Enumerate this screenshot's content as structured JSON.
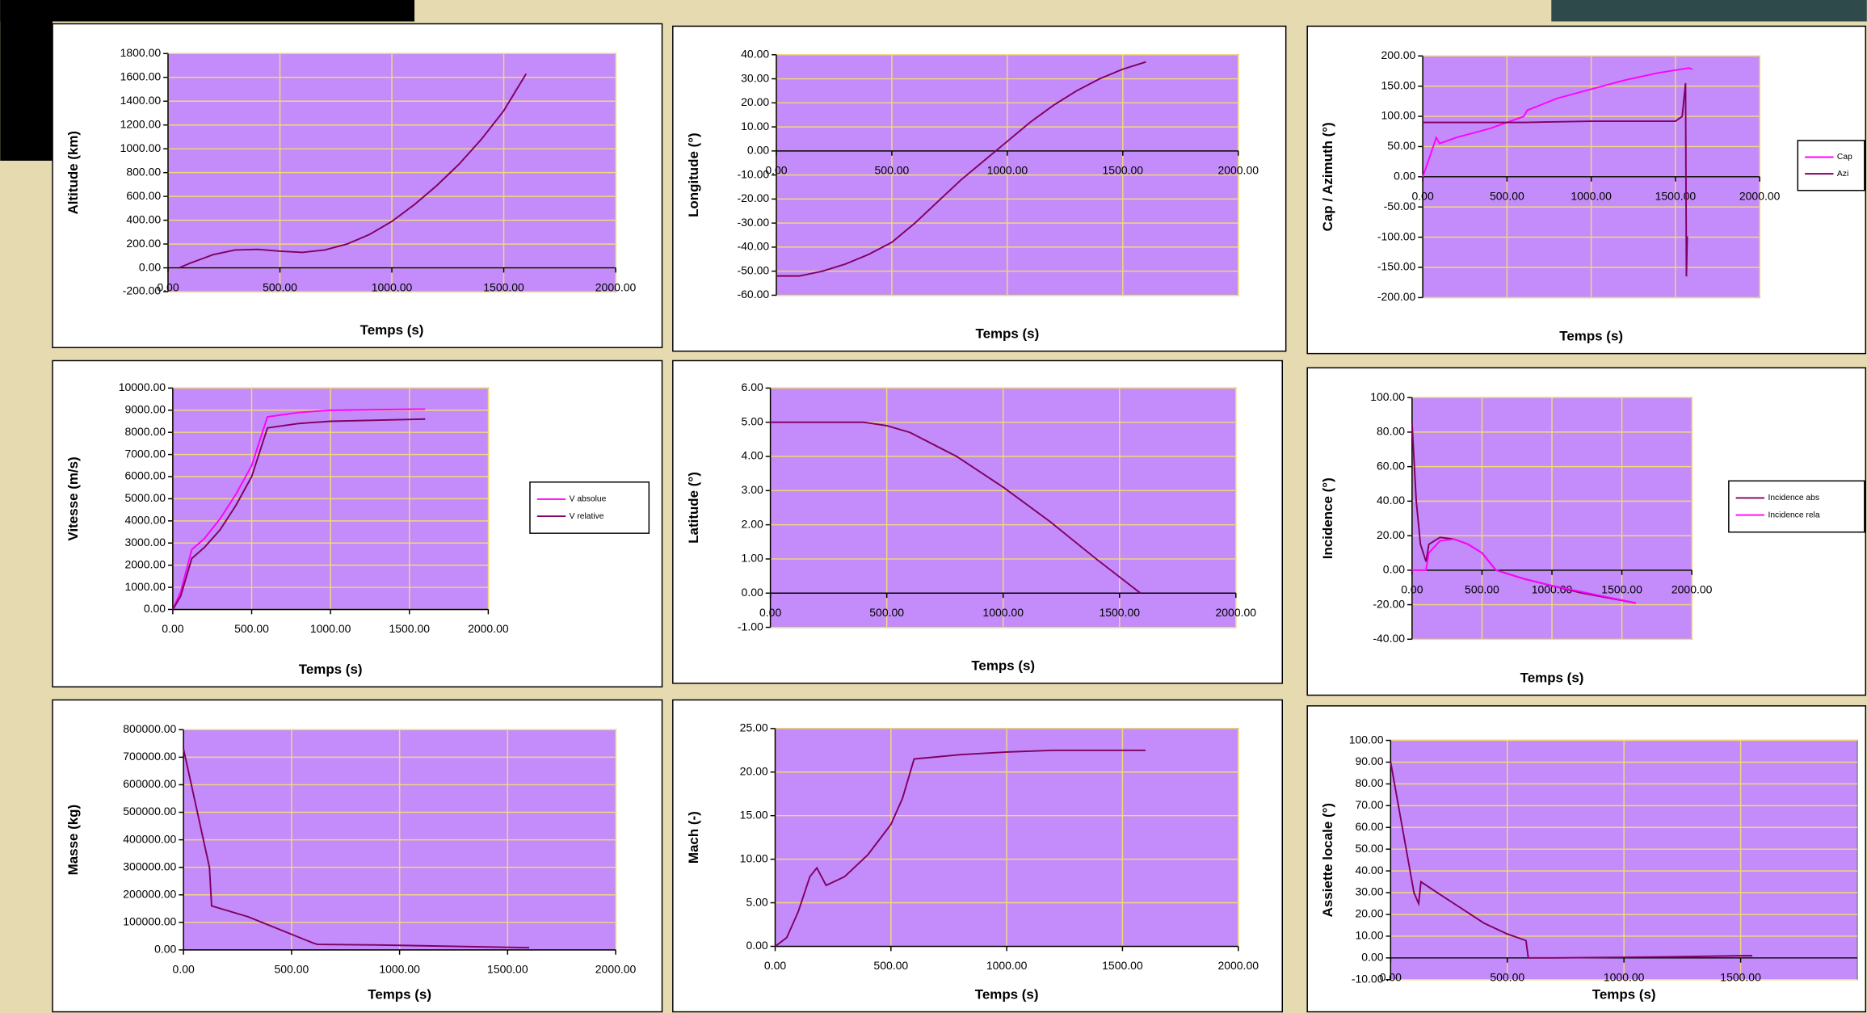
{
  "chart_data": [
    {
      "type": "line",
      "ylabel": "Altitude (km)",
      "xlabel": "Temps (s)",
      "xlim": [
        0,
        2000
      ],
      "ylim": [
        -200,
        1800
      ],
      "grid": true,
      "xticks": [
        {
          "value": 0,
          "label": "0.00"
        },
        {
          "value": 500,
          "label": "500.00"
        },
        {
          "value": 1000,
          "label": "1000.00"
        },
        {
          "value": 1500,
          "label": "1500.00"
        },
        {
          "value": 2000,
          "label": "2000.00"
        }
      ],
      "yticks": [
        {
          "value": -200,
          "label": "-200.00"
        },
        {
          "value": 0,
          "label": "0.00"
        },
        {
          "value": 200,
          "label": "200.00"
        },
        {
          "value": 400,
          "label": "400.00"
        },
        {
          "value": 600,
          "label": "600.00"
        },
        {
          "value": 800,
          "label": "800.00"
        },
        {
          "value": 1000,
          "label": "1000.00"
        },
        {
          "value": 1200,
          "label": "1200.00"
        },
        {
          "value": 1400,
          "label": "1400.00"
        },
        {
          "value": 1600,
          "label": "1600.00"
        },
        {
          "value": 1800,
          "label": "1800.00"
        }
      ],
      "series": [
        {
          "color": "#800060",
          "x": [
            50,
            100,
            200,
            300,
            400,
            500,
            600,
            700,
            800,
            900,
            1000,
            1100,
            1200,
            1300,
            1400,
            1500,
            1600
          ],
          "values": [
            0,
            40,
            110,
            150,
            155,
            140,
            130,
            150,
            200,
            280,
            390,
            530,
            690,
            870,
            1080,
            1320,
            1630
          ]
        }
      ]
    },
    {
      "type": "line",
      "ylabel": "Longitude (°)",
      "xlabel": "Temps (s)",
      "xlim": [
        0,
        2000
      ],
      "ylim": [
        -60,
        40
      ],
      "grid": true,
      "xticks": [
        {
          "value": 0,
          "label": "0.00"
        },
        {
          "value": 500,
          "label": "500.00"
        },
        {
          "value": 1000,
          "label": "1000.00"
        },
        {
          "value": 1500,
          "label": "1500.00"
        },
        {
          "value": 2000,
          "label": "2000.00"
        }
      ],
      "yticks": [
        {
          "value": -60,
          "label": "-60.00"
        },
        {
          "value": -50,
          "label": "-50.00"
        },
        {
          "value": -40,
          "label": "-40.00"
        },
        {
          "value": -30,
          "label": "-30.00"
        },
        {
          "value": -20,
          "label": "-20.00"
        },
        {
          "value": -10,
          "label": "-10.00"
        },
        {
          "value": 0,
          "label": "0.00"
        },
        {
          "value": 10,
          "label": "10.00"
        },
        {
          "value": 20,
          "label": "20.00"
        },
        {
          "value": 30,
          "label": "30.00"
        },
        {
          "value": 40,
          "label": "40.00"
        }
      ],
      "series": [
        {
          "color": "#800060",
          "x": [
            0,
            100,
            200,
            300,
            400,
            500,
            600,
            700,
            800,
            900,
            1000,
            1100,
            1200,
            1300,
            1400,
            1500,
            1600
          ],
          "values": [
            -52,
            -52,
            -50,
            -47,
            -43,
            -38,
            -30,
            -21,
            -12,
            -4,
            4,
            12,
            19,
            25,
            30,
            34,
            37
          ]
        }
      ]
    },
    {
      "type": "line",
      "ylabel": "Cap / Azimuth (°)",
      "xlabel": "Temps (s)",
      "xlim": [
        0,
        2000
      ],
      "ylim": [
        -200,
        200
      ],
      "grid": true,
      "legend": "right",
      "xticks": [
        {
          "value": 0,
          "label": "0.00"
        },
        {
          "value": 500,
          "label": "500.00"
        },
        {
          "value": 1000,
          "label": "1000.00"
        },
        {
          "value": 1500,
          "label": "1500.00"
        },
        {
          "value": 2000,
          "label": "2000.00"
        }
      ],
      "yticks": [
        {
          "value": -200,
          "label": "-200.00"
        },
        {
          "value": -150,
          "label": "-150.00"
        },
        {
          "value": -100,
          "label": "-100.00"
        },
        {
          "value": -50,
          "label": "-50.00"
        },
        {
          "value": 0,
          "label": "0.00"
        },
        {
          "value": 50,
          "label": "50.00"
        },
        {
          "value": 100,
          "label": "100.00"
        },
        {
          "value": 150,
          "label": "150.00"
        },
        {
          "value": 200,
          "label": "200.00"
        }
      ],
      "series": [
        {
          "name": "Cap",
          "color": "#ff00ff",
          "x": [
            0,
            50,
            80,
            100,
            200,
            400,
            600,
            620,
            800,
            1000,
            1200,
            1400,
            1580,
            1600
          ],
          "values": [
            0,
            40,
            65,
            55,
            65,
            80,
            100,
            110,
            130,
            145,
            160,
            172,
            180,
            178
          ]
        },
        {
          "name": "Azi",
          "color": "#800060",
          "x": [
            0,
            500,
            600,
            1000,
            1500,
            1540,
            1560,
            1565,
            1570,
            1575
          ],
          "values": [
            90,
            90,
            90,
            92,
            92,
            100,
            155,
            -165,
            -100,
            -100
          ]
        }
      ]
    },
    {
      "type": "line",
      "ylabel": "Vitesse  (m/s)",
      "xlabel": "Temps (s)",
      "xlim": [
        0,
        2000
      ],
      "ylim": [
        0,
        10000
      ],
      "grid": true,
      "legend": "right",
      "xticks": [
        {
          "value": 0,
          "label": "0.00"
        },
        {
          "value": 500,
          "label": "500.00"
        },
        {
          "value": 1000,
          "label": "1000.00"
        },
        {
          "value": 1500,
          "label": "1500.00"
        },
        {
          "value": 2000,
          "label": "2000.00"
        }
      ],
      "yticks": [
        {
          "value": 0,
          "label": "0.00"
        },
        {
          "value": 1000,
          "label": "1000.00"
        },
        {
          "value": 2000,
          "label": "2000.00"
        },
        {
          "value": 3000,
          "label": "3000.00"
        },
        {
          "value": 4000,
          "label": "4000.00"
        },
        {
          "value": 5000,
          "label": "5000.00"
        },
        {
          "value": 6000,
          "label": "6000.00"
        },
        {
          "value": 7000,
          "label": "7000.00"
        },
        {
          "value": 8000,
          "label": "8000.00"
        },
        {
          "value": 9000,
          "label": "9000.00"
        },
        {
          "value": 10000,
          "label": "10000.00"
        }
      ],
      "series": [
        {
          "name": "V absolue",
          "color": "#ff00ff",
          "x": [
            0,
            50,
            120,
            200,
            300,
            400,
            500,
            600,
            800,
            1000,
            1600
          ],
          "values": [
            0,
            800,
            2700,
            3200,
            4100,
            5200,
            6500,
            8700,
            8900,
            9000,
            9050
          ]
        },
        {
          "name": "V relative",
          "color": "#800060",
          "x": [
            0,
            50,
            120,
            200,
            300,
            400,
            500,
            600,
            800,
            1000,
            1600
          ],
          "values": [
            0,
            600,
            2300,
            2800,
            3600,
            4700,
            6000,
            8200,
            8400,
            8500,
            8600
          ]
        }
      ]
    },
    {
      "type": "line",
      "ylabel": "Latitude (°)",
      "xlabel": "Temps (s)",
      "xlim": [
        0,
        2000
      ],
      "ylim": [
        -1,
        6
      ],
      "grid": true,
      "xticks": [
        {
          "value": 0,
          "label": "0.00"
        },
        {
          "value": 500,
          "label": "500.00"
        },
        {
          "value": 1000,
          "label": "1000.00"
        },
        {
          "value": 1500,
          "label": "1500.00"
        },
        {
          "value": 2000,
          "label": "2000.00"
        }
      ],
      "yticks": [
        {
          "value": -1,
          "label": "-1.00"
        },
        {
          "value": 0,
          "label": "0.00"
        },
        {
          "value": 1,
          "label": "1.00"
        },
        {
          "value": 2,
          "label": "2.00"
        },
        {
          "value": 3,
          "label": "3.00"
        },
        {
          "value": 4,
          "label": "4.00"
        },
        {
          "value": 5,
          "label": "5.00"
        },
        {
          "value": 6,
          "label": "6.00"
        }
      ],
      "series": [
        {
          "color": "#800060",
          "x": [
            0,
            400,
            500,
            600,
            800,
            1000,
            1200,
            1400,
            1590
          ],
          "values": [
            5,
            5,
            4.9,
            4.7,
            4,
            3.1,
            2.1,
            1,
            0
          ]
        }
      ]
    },
    {
      "type": "line",
      "ylabel": "Incidence (°)",
      "xlabel": "Temps (s)",
      "xlim": [
        0,
        2000
      ],
      "ylim": [
        -40,
        100
      ],
      "grid": true,
      "legend": "right",
      "xticks": [
        {
          "value": 0,
          "label": "0.00"
        },
        {
          "value": 500,
          "label": "500.00"
        },
        {
          "value": 1000,
          "label": "1000.00"
        },
        {
          "value": 1500,
          "label": "1500.00"
        },
        {
          "value": 2000,
          "label": "2000.00"
        }
      ],
      "yticks": [
        {
          "value": -40,
          "label": "-40.00"
        },
        {
          "value": -20,
          "label": "-20.00"
        },
        {
          "value": 0,
          "label": "0.00"
        },
        {
          "value": 20,
          "label": "20.00"
        },
        {
          "value": 40,
          "label": "40.00"
        },
        {
          "value": 60,
          "label": "60.00"
        },
        {
          "value": 80,
          "label": "80.00"
        },
        {
          "value": 100,
          "label": "100.00"
        }
      ],
      "series": [
        {
          "name": "Incidence abs",
          "color": "#800060",
          "x": [
            0,
            30,
            60,
            100,
            120,
            200,
            300,
            400,
            500,
            600,
            800,
            1000,
            1200,
            1400,
            1600
          ],
          "values": [
            85,
            40,
            15,
            5,
            15,
            19,
            18,
            15,
            10,
            0,
            -5,
            -9,
            -13,
            -16,
            -19
          ]
        },
        {
          "name": "Incidence rela",
          "color": "#ff00ff",
          "x": [
            0,
            100,
            120,
            200,
            300,
            400,
            500,
            600,
            800,
            1000,
            1600
          ],
          "values": [
            0,
            0,
            10,
            17,
            18,
            15,
            10,
            0,
            -5,
            -9,
            -19
          ]
        }
      ]
    },
    {
      "type": "line",
      "ylabel": "Masse (kg)",
      "xlabel": "Temps (s)",
      "xlim": [
        0,
        2000
      ],
      "ylim": [
        0,
        800000
      ],
      "grid": true,
      "xticks": [
        {
          "value": 0,
          "label": "0.00"
        },
        {
          "value": 500,
          "label": "500.00"
        },
        {
          "value": 1000,
          "label": "1000.00"
        },
        {
          "value": 1500,
          "label": "1500.00"
        },
        {
          "value": 2000,
          "label": "2000.00"
        }
      ],
      "yticks": [
        {
          "value": 0,
          "label": "0.00"
        },
        {
          "value": 100000,
          "label": "100000.00"
        },
        {
          "value": 200000,
          "label": "200000.00"
        },
        {
          "value": 300000,
          "label": "300000.00"
        },
        {
          "value": 400000,
          "label": "400000.00"
        },
        {
          "value": 500000,
          "label": "500000.00"
        },
        {
          "value": 600000,
          "label": "600000.00"
        },
        {
          "value": 700000,
          "label": "700000.00"
        },
        {
          "value": 800000,
          "label": "800000.00"
        }
      ],
      "series": [
        {
          "color": "#800060",
          "x": [
            0,
            120,
            130,
            300,
            600,
            620,
            900,
            1600
          ],
          "values": [
            730000,
            300000,
            160000,
            120000,
            25000,
            20000,
            18000,
            8000
          ]
        }
      ]
    },
    {
      "type": "line",
      "ylabel": "Mach (-)",
      "xlabel": "Temps (s)",
      "xlim": [
        0,
        2000
      ],
      "ylim": [
        0,
        25
      ],
      "grid": true,
      "xticks": [
        {
          "value": 0,
          "label": "0.00"
        },
        {
          "value": 500,
          "label": "500.00"
        },
        {
          "value": 1000,
          "label": "1000.00"
        },
        {
          "value": 1500,
          "label": "1500.00"
        },
        {
          "value": 2000,
          "label": "2000.00"
        }
      ],
      "yticks": [
        {
          "value": 0,
          "label": "0.00"
        },
        {
          "value": 5,
          "label": "5.00"
        },
        {
          "value": 10,
          "label": "10.00"
        },
        {
          "value": 15,
          "label": "15.00"
        },
        {
          "value": 20,
          "label": "20.00"
        },
        {
          "value": 25,
          "label": "25.00"
        }
      ],
      "series": [
        {
          "color": "#800060",
          "x": [
            0,
            50,
            100,
            150,
            180,
            200,
            220,
            300,
            400,
            500,
            550,
            600,
            800,
            1000,
            1200,
            1600
          ],
          "values": [
            0,
            1,
            4,
            8,
            9,
            8,
            7,
            8,
            10.5,
            14,
            17,
            21.5,
            22,
            22.3,
            22.5,
            22.5
          ]
        }
      ]
    },
    {
      "type": "line",
      "ylabel": "Assiette locale (°)",
      "xlabel": "Temps (s)",
      "xlim": [
        0,
        2000
      ],
      "ylim": [
        -10,
        100
      ],
      "grid": true,
      "xticks": [
        {
          "value": 0,
          "label": "0.00"
        },
        {
          "value": 500,
          "label": "500.00"
        },
        {
          "value": 1000,
          "label": "1000.00"
        },
        {
          "value": 1500,
          "label": "1500.00"
        }
      ],
      "yticks": [
        {
          "value": -10,
          "label": "-10.00"
        },
        {
          "value": 0,
          "label": "0.00"
        },
        {
          "value": 10,
          "label": "10.00"
        },
        {
          "value": 20,
          "label": "20.00"
        },
        {
          "value": 30,
          "label": "30.00"
        },
        {
          "value": 40,
          "label": "40.00"
        },
        {
          "value": 50,
          "label": "50.00"
        },
        {
          "value": 60,
          "label": "60.00"
        },
        {
          "value": 70,
          "label": "70.00"
        },
        {
          "value": 80,
          "label": "80.00"
        },
        {
          "value": 90,
          "label": "90.00"
        },
        {
          "value": 100,
          "label": "100.00"
        }
      ],
      "series": [
        {
          "color": "#800060",
          "x": [
            0,
            50,
            100,
            120,
            130,
            200,
            300,
            400,
            500,
            580,
            590,
            700,
            1200,
            1500,
            1550
          ],
          "values": [
            90,
            60,
            30,
            25,
            35,
            30,
            23,
            16,
            11,
            8,
            0,
            0,
            0.5,
            1,
            1
          ]
        }
      ]
    }
  ]
}
